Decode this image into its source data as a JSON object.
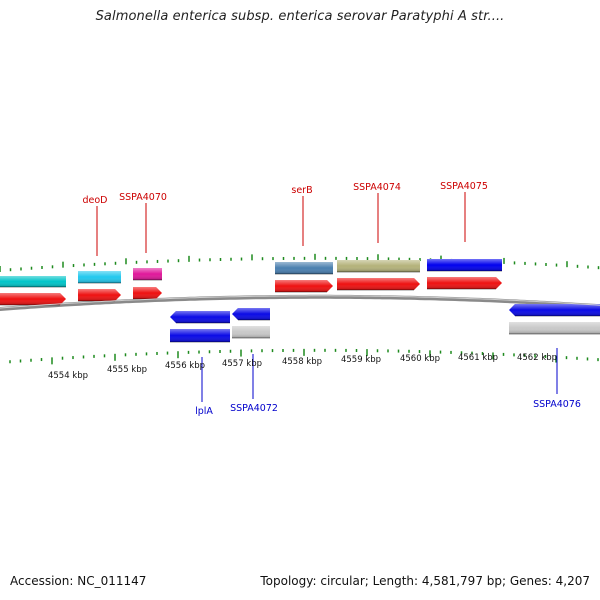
{
  "title": "Salmonella enterica subsp. enterica serovar Paratyphi A str....",
  "footer": {
    "accession": "Accession: NC_011147",
    "summary": "Topology: circular; Length: 4,581,797 bp; Genes: 4,207"
  },
  "colors": {
    "backbone": "#8a8a8a",
    "tick": "#1e8a1e",
    "forward_label": "#cc0000",
    "reverse_label": "#0000cc"
  },
  "axis": {
    "unit": "kbp",
    "labels": [
      "4554 kbp",
      "4555 kbp",
      "4556 kbp",
      "4557 kbp",
      "4558 kbp",
      "4559 kbp",
      "4560 kbp",
      "4561 kbp",
      "4562 kbp"
    ]
  },
  "gene_labels": [
    {
      "name": "deoD",
      "strand": "forward"
    },
    {
      "name": "SSPA4070",
      "strand": "forward"
    },
    {
      "name": "serB",
      "strand": "forward"
    },
    {
      "name": "SSPA4074",
      "strand": "forward"
    },
    {
      "name": "SSPA4075",
      "strand": "forward"
    },
    {
      "name": "lplA",
      "strand": "reverse"
    },
    {
      "name": "SSPA4072",
      "strand": "reverse"
    },
    {
      "name": "SSPA4076",
      "strand": "reverse"
    }
  ]
}
